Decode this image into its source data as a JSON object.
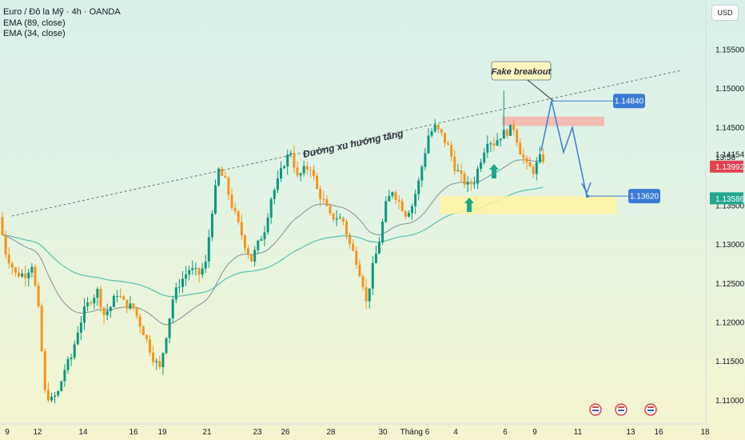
{
  "legend": {
    "symbol": "Euro / Đô la Mỹ · 4h · OANDA",
    "ema1": "EMA (89, close)",
    "ema2": "EMA (34, close)"
  },
  "axis": {
    "currency": "USD"
  },
  "chart_data": {
    "type": "candlestick",
    "ylim": [
      1.109,
      1.1605
    ],
    "y_ticks": [
      "1.15500",
      "1.15000",
      "1.14500",
      "1.14000",
      "1.13500",
      "1.13000",
      "1.12500",
      "1.12000",
      "1.11500",
      "1.11000"
    ],
    "x_ticks": [
      "9",
      "12",
      "14",
      "16",
      "19",
      "21",
      "23",
      "26",
      "28",
      "30",
      "Tháng 6",
      "4",
      "6",
      "9",
      "11",
      "13",
      "16",
      "18"
    ],
    "colors": {
      "up": "#089981",
      "down": "#f7931a",
      "ema89": "#5fc4b3",
      "ema34": "#78909c",
      "arrow": "#3a7bd5",
      "trend": "#607080"
    },
    "price_labels": [
      {
        "value": 1.14154,
        "text": "1.14154",
        "style": "plain"
      },
      {
        "value": 1.1412,
        "text": "13:58",
        "style": "plain"
      },
      {
        "value": 1.13993,
        "text": "1.13993",
        "style": "red"
      },
      {
        "value": 1.13586,
        "text": "1.13586",
        "style": "teal"
      }
    ],
    "annotations": {
      "fake_breakout": "Fake breakout",
      "trendline": "Đường xu hướng tăng",
      "target_high": "1.14840",
      "target_low": "1.13620"
    }
  }
}
